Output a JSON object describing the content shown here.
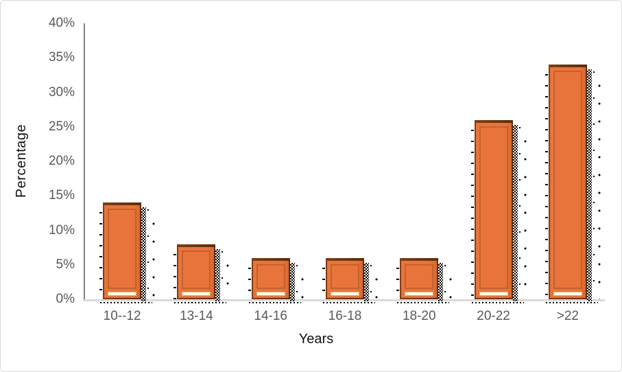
{
  "chart_data": {
    "type": "bar",
    "title": "",
    "categories": [
      "10--12",
      "13-14",
      "14-16",
      "16-18",
      "18-20",
      "20-22",
      ">22"
    ],
    "values": [
      14,
      8,
      6,
      6,
      6,
      26,
      34
    ],
    "xlabel": "Years",
    "ylabel": "Percentage",
    "ylim": [
      0,
      40
    ],
    "ytick_labels": [
      "40%",
      "35%",
      "30%",
      "25%",
      "20%",
      "15%",
      "10%",
      "5%",
      "0%"
    ],
    "ytick_values": [
      40,
      35,
      30,
      25,
      20,
      15,
      10,
      5,
      0
    ],
    "grid": false,
    "legend": "none"
  },
  "colors": {
    "bar_fill": "#e8743c",
    "bar_fill_shade": "#d96830",
    "bar_border": "#a85020",
    "bar_top_edge": "#5e2d0b",
    "bar_inner_frame": "#c4612c",
    "bar_bottom_stripe": "#fffae8",
    "shadow": "#000000",
    "value_axis_line": "#7f7f7f",
    "category_axis_line": "#d9d9d9",
    "tick_label": "#595959",
    "axis_title": "#111111",
    "frame_border": "#d9d9d9",
    "background": "#ffffff"
  }
}
